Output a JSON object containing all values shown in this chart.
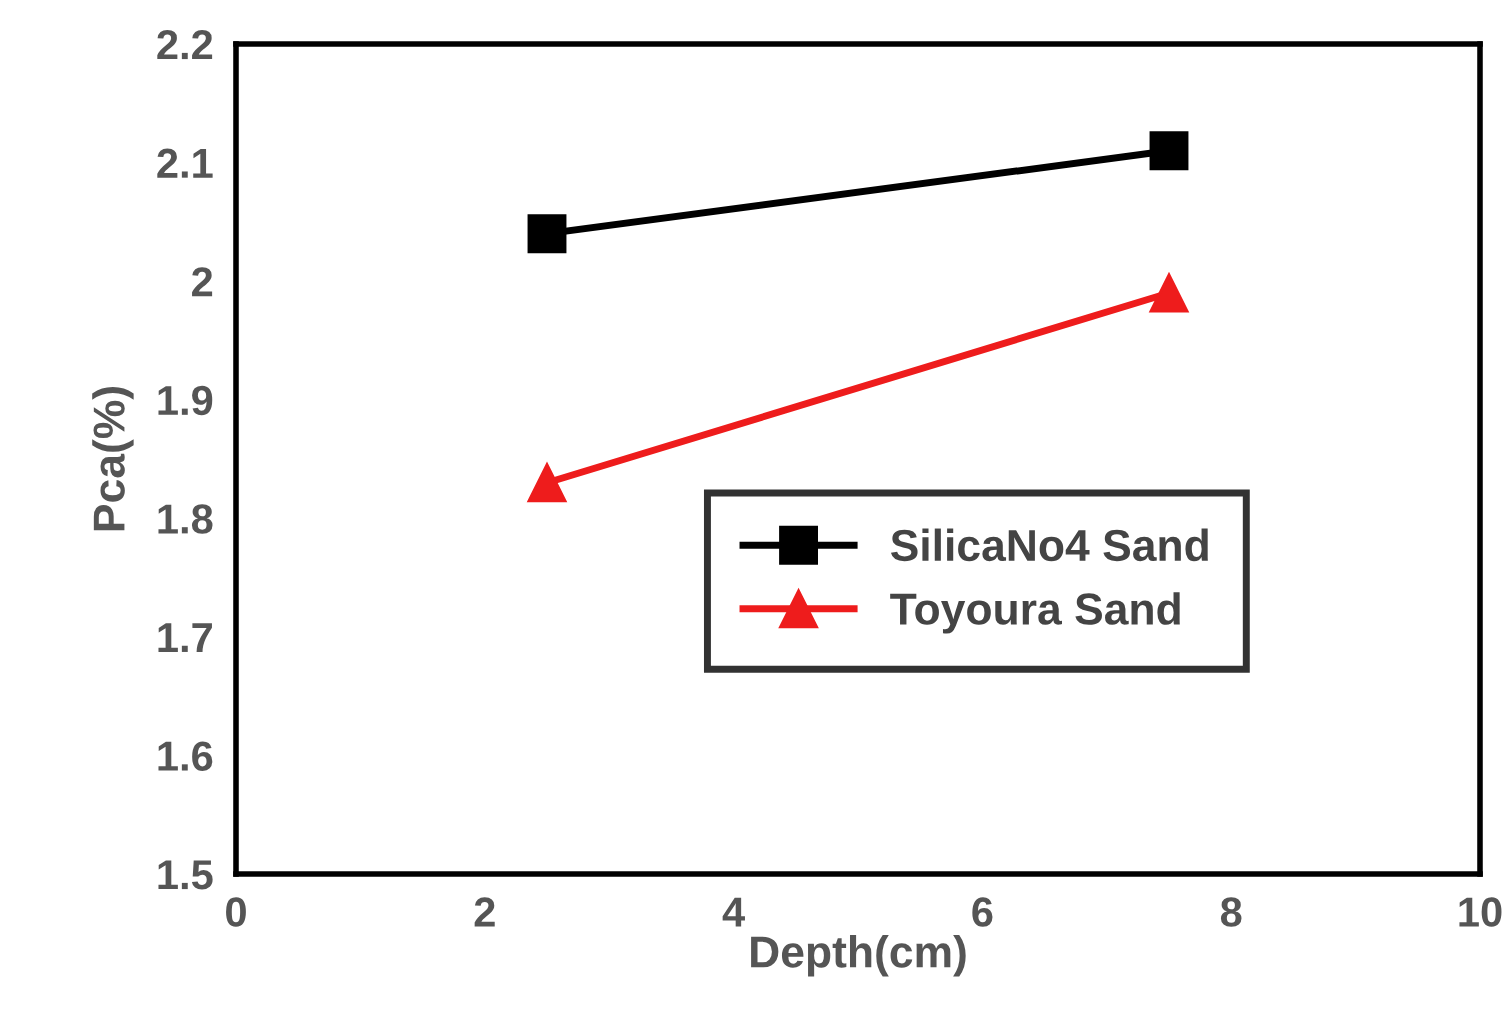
{
  "chart_data": {
    "type": "line",
    "xlabel": "Depth(cm)",
    "ylabel": "Pca(%)",
    "xlim": [
      0,
      10
    ],
    "xticks": [
      0,
      2,
      4,
      6,
      8,
      10
    ],
    "ylim": [
      1.5,
      2.2
    ],
    "yticks": [
      1.5,
      1.6,
      1.7,
      1.8,
      1.9,
      2,
      2.1,
      2.2
    ],
    "x": [
      2.5,
      7.5
    ],
    "grid": false,
    "legend": "bottom right",
    "line_style": "solid",
    "series": [
      {
        "name": "SilicaNo4 Sand",
        "color": "#000000",
        "marker": "square",
        "values": [
          2.04,
          2.11
        ]
      },
      {
        "name": "Toyoura Sand",
        "color": "#ee1c1c",
        "marker": "triangle",
        "values": [
          1.83,
          1.99
        ]
      }
    ]
  }
}
